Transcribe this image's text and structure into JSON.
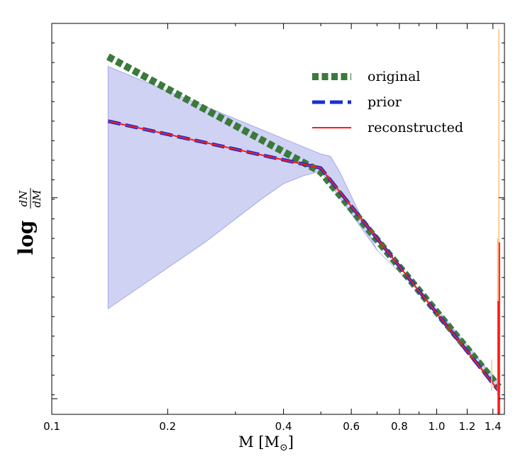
{
  "chart_data": {
    "type": "line",
    "xscale": "log",
    "xlim": [
      0.1,
      1.5
    ],
    "ylim": [
      0.0,
      1.0
    ],
    "xlabel": "M [M",
    "xlabel_sub": "⊙",
    "xlabel_end": "]",
    "ylabel_main": "log",
    "ylabel_num": "dN",
    "ylabel_den": "dM",
    "xticks": [
      {
        "value": 0.1,
        "label": "0.1"
      },
      {
        "value": 0.2,
        "label": "0.2"
      },
      {
        "value": 0.4,
        "label": "0.4"
      },
      {
        "value": 0.6,
        "label": "0.6"
      },
      {
        "value": 0.8,
        "label": "0.8"
      },
      {
        "value": 1.0,
        "label": "1.0"
      },
      {
        "value": 1.2,
        "label": "1.2"
      },
      {
        "value": 1.4,
        "label": "1.4"
      }
    ],
    "yticks_major": [
      0.04,
      0.554
    ],
    "series": [
      {
        "name": "original",
        "color": "#3a7a3a",
        "style": "dotted-thick",
        "x": [
          0.14,
          0.5,
          1.45
        ],
        "y": [
          0.915,
          0.62,
          0.07
        ]
      },
      {
        "name": "prior",
        "color": "#1a2fd0",
        "style": "dashed",
        "x": [
          0.14,
          0.5,
          1.45
        ],
        "y": [
          0.75,
          0.63,
          0.06
        ]
      },
      {
        "name": "reconstructed",
        "color": "#ff1a1a",
        "style": "solid",
        "x": [
          0.14,
          0.5,
          1.45
        ],
        "y": [
          0.75,
          0.63,
          0.06
        ]
      }
    ],
    "band": {
      "color": "#6a72da",
      "upper": {
        "x": [
          0.14,
          0.5,
          0.53,
          0.56,
          0.7,
          1.0,
          1.45
        ],
        "y": [
          0.89,
          0.666,
          0.66,
          0.62,
          0.42,
          0.27,
          0.08
        ]
      },
      "lower": {
        "x": [
          0.14,
          0.25,
          0.35,
          0.4,
          0.45,
          0.5,
          0.7,
          1.0,
          1.45
        ],
        "y": [
          0.27,
          0.44,
          0.55,
          0.59,
          0.61,
          0.622,
          0.42,
          0.27,
          0.06
        ]
      }
    },
    "spikes": [
      {
        "x": 1.45,
        "color": "#ffc080",
        "y_top": 0.985,
        "y_bottom": 0.0
      },
      {
        "x": 1.44,
        "color": "#ffc080",
        "y_top": 0.45,
        "y_bottom": 0.05
      },
      {
        "x": 1.39,
        "color": "#ffc080",
        "y_top": 0.14,
        "y_bottom": 0.06
      },
      {
        "x": 1.455,
        "color": "#ff1a1a",
        "y_top": 0.44,
        "y_bottom": 0.0
      },
      {
        "x": 1.445,
        "color": "#ff1a1a",
        "y_top": 0.29,
        "y_bottom": 0.0
      }
    ],
    "legend": {
      "position": "top-right",
      "entries": [
        "original",
        "prior",
        "reconstructed"
      ]
    }
  }
}
